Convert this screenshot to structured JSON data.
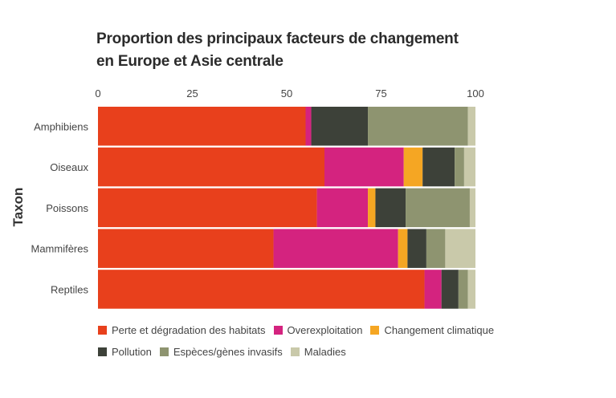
{
  "chart_data": {
    "type": "bar",
    "orientation": "horizontal",
    "stacked": true,
    "title": "Proportion des principaux facteurs de changement",
    "subtitle": "en Europe et Asie centrale",
    "xlabel": "",
    "ylabel": "Taxon",
    "xlim": [
      0,
      100
    ],
    "xticks": [
      "0",
      "25",
      "50",
      "75",
      "100"
    ],
    "xtick_values": [
      0,
      25,
      50,
      75,
      100
    ],
    "grid": false,
    "legend_position": "bottom",
    "categories": [
      "Amphibiens",
      "Oiseaux",
      "Poissons",
      "Mammifères",
      "Reptiles"
    ],
    "series": [
      {
        "name": "Perte et dégradation des habitats",
        "color": "#e8401c",
        "values": [
          55,
          60,
          58,
          46.5,
          86.5
        ]
      },
      {
        "name": "Overexploitation",
        "color": "#d4237f",
        "values": [
          1.5,
          21,
          13.5,
          33,
          4.5
        ]
      },
      {
        "name": "Changement climatique",
        "color": "#f5a623",
        "values": [
          0,
          5,
          2,
          2.5,
          0
        ]
      },
      {
        "name": "Pollution",
        "color": "#3d4139",
        "values": [
          15,
          8.5,
          8,
          5,
          4.5
        ]
      },
      {
        "name": "Espèces/gènes invasifs",
        "color": "#8e9470",
        "values": [
          26.5,
          2.5,
          17,
          5,
          2.5
        ]
      },
      {
        "name": "Maladies",
        "color": "#c9c9aa",
        "values": [
          2,
          3,
          1.5,
          8,
          2
        ]
      }
    ]
  }
}
